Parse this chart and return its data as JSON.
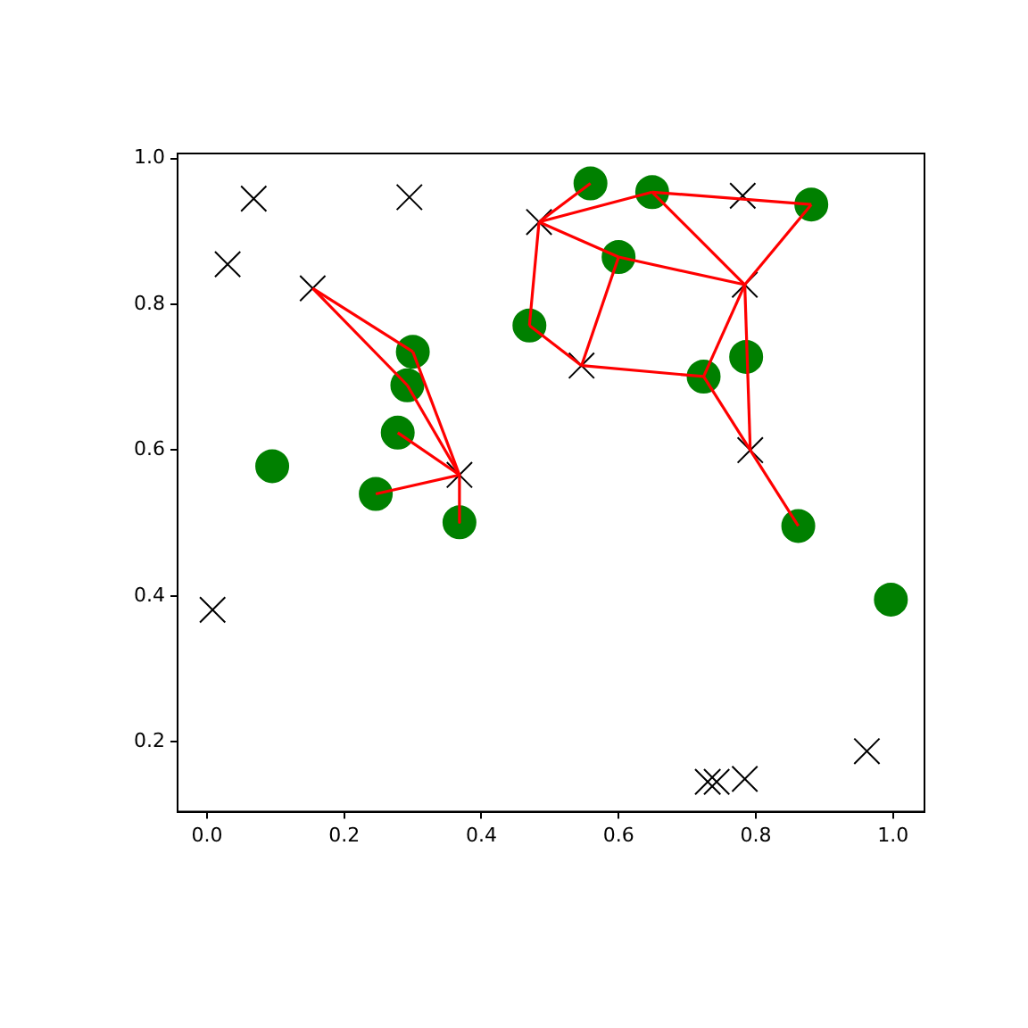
{
  "chart_data": {
    "type": "scatter",
    "grid": false,
    "legend": false,
    "xlim": [
      -0.043,
      1.046
    ],
    "ylim": [
      0.104,
      1.007
    ],
    "xticks": [
      {
        "value": 0,
        "label": "0.0"
      },
      {
        "value": 0.2,
        "label": "0.2"
      },
      {
        "value": 0.4,
        "label": "0.4"
      },
      {
        "value": 0.6,
        "label": "0.6"
      },
      {
        "value": 0.8,
        "label": "0.8"
      },
      {
        "value": 1,
        "label": "1.0"
      }
    ],
    "yticks": [
      {
        "value": 0.2,
        "label": "0.2"
      },
      {
        "value": 0.4,
        "label": "0.4"
      },
      {
        "value": 0.6,
        "label": "0.6"
      },
      {
        "value": 0.8,
        "label": "0.8"
      },
      {
        "value": 1,
        "label": "1.0"
      }
    ],
    "series": [
      {
        "type": "scatter",
        "marker": "circle",
        "color": "#008000",
        "x": [
          0.095,
          0.3,
          0.292,
          0.278,
          0.246,
          0.368,
          0.47,
          0.559,
          0.6,
          0.649,
          0.724,
          0.786,
          0.881,
          0.862,
          0.997
        ],
        "values": [
          0.578,
          0.735,
          0.689,
          0.624,
          0.54,
          0.501,
          0.771,
          0.966,
          0.865,
          0.954,
          0.701,
          0.728,
          0.937,
          0.496,
          0.395
        ]
      },
      {
        "type": "scatter",
        "marker": "cross",
        "color": "#000000",
        "x": [
          0.068,
          0.03,
          0.295,
          0.154,
          0.368,
          0.484,
          0.546,
          0.781,
          0.784,
          0.792,
          0.008,
          0.73,
          0.743,
          0.784,
          0.962
        ],
        "values": [
          0.945,
          0.855,
          0.947,
          0.822,
          0.566,
          0.913,
          0.716,
          0.949,
          0.827,
          0.6,
          0.381,
          0.145,
          0.145,
          0.149,
          0.187
        ]
      },
      {
        "type": "line",
        "marker": "none",
        "color": "#ff0000",
        "x": [
          0.154,
          0.3
        ],
        "values": [
          0.822,
          0.735
        ]
      },
      {
        "type": "line",
        "marker": "none",
        "color": "#ff0000",
        "x": [
          0.3,
          0.368
        ],
        "values": [
          0.735,
          0.566
        ]
      },
      {
        "type": "line",
        "marker": "none",
        "color": "#ff0000",
        "x": [
          0.154,
          0.292
        ],
        "values": [
          0.822,
          0.689
        ]
      },
      {
        "type": "line",
        "marker": "none",
        "color": "#ff0000",
        "x": [
          0.292,
          0.368
        ],
        "values": [
          0.689,
          0.566
        ]
      },
      {
        "type": "line",
        "marker": "none",
        "color": "#ff0000",
        "x": [
          0.278,
          0.368
        ],
        "values": [
          0.624,
          0.566
        ]
      },
      {
        "type": "line",
        "marker": "none",
        "color": "#ff0000",
        "x": [
          0.246,
          0.368
        ],
        "values": [
          0.54,
          0.566
        ]
      },
      {
        "type": "line",
        "marker": "none",
        "color": "#ff0000",
        "x": [
          0.368,
          0.368
        ],
        "values": [
          0.566,
          0.501
        ]
      },
      {
        "type": "line",
        "marker": "none",
        "color": "#ff0000",
        "x": [
          0.484,
          0.559
        ],
        "values": [
          0.913,
          0.966
        ]
      },
      {
        "type": "line",
        "marker": "none",
        "color": "#ff0000",
        "x": [
          0.484,
          0.649
        ],
        "values": [
          0.913,
          0.954
        ]
      },
      {
        "type": "line",
        "marker": "none",
        "color": "#ff0000",
        "x": [
          0.649,
          0.881
        ],
        "values": [
          0.954,
          0.937
        ]
      },
      {
        "type": "line",
        "marker": "none",
        "color": "#ff0000",
        "x": [
          0.784,
          0.881
        ],
        "values": [
          0.827,
          0.937
        ]
      },
      {
        "type": "line",
        "marker": "none",
        "color": "#ff0000",
        "x": [
          0.649,
          0.784
        ],
        "values": [
          0.954,
          0.827
        ]
      },
      {
        "type": "line",
        "marker": "none",
        "color": "#ff0000",
        "x": [
          0.484,
          0.6
        ],
        "values": [
          0.913,
          0.865
        ]
      },
      {
        "type": "line",
        "marker": "none",
        "color": "#ff0000",
        "x": [
          0.6,
          0.784
        ],
        "values": [
          0.865,
          0.827
        ]
      },
      {
        "type": "line",
        "marker": "none",
        "color": "#ff0000",
        "x": [
          0.546,
          0.6
        ],
        "values": [
          0.716,
          0.865
        ]
      },
      {
        "type": "line",
        "marker": "none",
        "color": "#ff0000",
        "x": [
          0.47,
          0.484
        ],
        "values": [
          0.771,
          0.913
        ]
      },
      {
        "type": "line",
        "marker": "none",
        "color": "#ff0000",
        "x": [
          0.47,
          0.546
        ],
        "values": [
          0.771,
          0.716
        ]
      },
      {
        "type": "line",
        "marker": "none",
        "color": "#ff0000",
        "x": [
          0.546,
          0.724
        ],
        "values": [
          0.716,
          0.701
        ]
      },
      {
        "type": "line",
        "marker": "none",
        "color": "#ff0000",
        "x": [
          0.724,
          0.784
        ],
        "values": [
          0.701,
          0.827
        ]
      },
      {
        "type": "line",
        "marker": "none",
        "color": "#ff0000",
        "x": [
          0.724,
          0.792
        ],
        "values": [
          0.701,
          0.6
        ]
      },
      {
        "type": "line",
        "marker": "none",
        "color": "#ff0000",
        "x": [
          0.784,
          0.792
        ],
        "values": [
          0.827,
          0.6
        ]
      },
      {
        "type": "line",
        "marker": "none",
        "color": "#ff0000",
        "x": [
          0.792,
          0.862
        ],
        "values": [
          0.6,
          0.496
        ]
      }
    ]
  }
}
